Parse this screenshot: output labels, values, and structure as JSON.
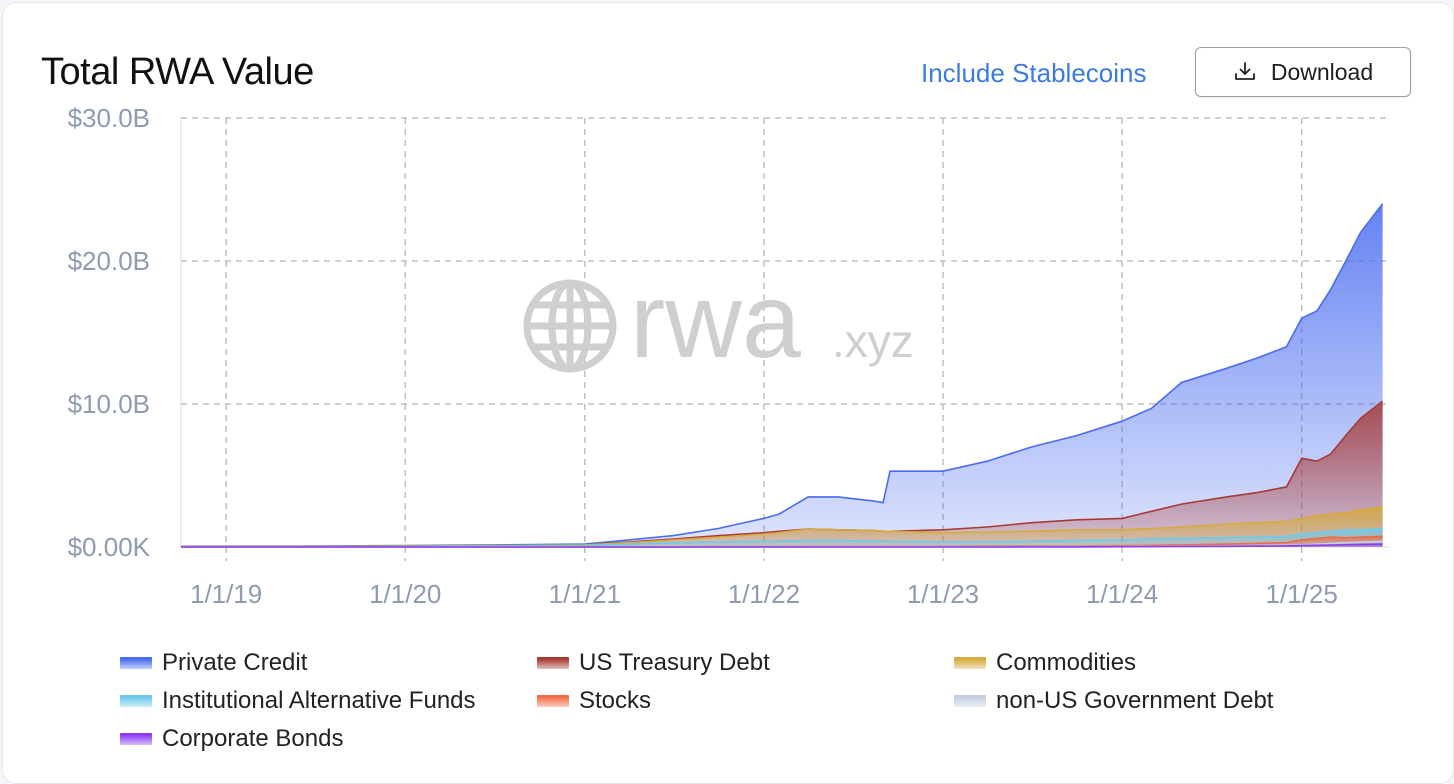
{
  "header": {
    "title": "Total RWA Value",
    "toggle_label": "Include Stablecoins",
    "download_label": "Download"
  },
  "watermark": {
    "brand": "rwa",
    "suffix": ".xyz"
  },
  "chart_data": {
    "type": "area",
    "stacked": true,
    "title": "Total RWA Value",
    "xlabel": "",
    "ylabel": "",
    "x_axis": {
      "type": "date",
      "range": [
        "2018-10-01",
        "2025-06-30"
      ],
      "ticks": [
        "2019-01-01",
        "2020-01-01",
        "2021-01-01",
        "2022-01-01",
        "2023-01-01",
        "2024-01-01",
        "2025-01-01"
      ],
      "tick_labels": [
        "1/1/19",
        "1/1/20",
        "1/1/21",
        "1/1/22",
        "1/1/23",
        "1/1/24",
        "1/1/25"
      ]
    },
    "y_axis": {
      "range": [
        0,
        30
      ],
      "unit": "billion USD",
      "ticks": [
        0,
        10,
        20,
        30
      ],
      "tick_labels": [
        "$0.00K",
        "$10.0B",
        "$20.0B",
        "$30.0B"
      ]
    },
    "grid": true,
    "legend_position": "bottom",
    "x_dates": [
      "2018-10-01",
      "2019-06-01",
      "2020-01-01",
      "2020-07-01",
      "2021-01-01",
      "2021-04-01",
      "2021-07-01",
      "2021-10-01",
      "2022-01-01",
      "2022-02-01",
      "2022-04-01",
      "2022-06-01",
      "2022-08-15",
      "2022-09-01",
      "2022-09-15",
      "2023-01-01",
      "2023-04-01",
      "2023-07-01",
      "2023-10-01",
      "2024-01-01",
      "2024-03-01",
      "2024-05-01",
      "2024-08-01",
      "2024-10-01",
      "2024-12-01",
      "2025-01-01",
      "2025-02-01",
      "2025-03-01",
      "2025-04-01",
      "2025-05-01",
      "2025-06-15"
    ],
    "cumulative_totals": [
      {
        "name": "Private Credit",
        "values": [
          0.05,
          0.07,
          0.1,
          0.15,
          0.2,
          0.5,
          0.8,
          1.3,
          2.0,
          2.3,
          3.5,
          3.5,
          3.2,
          3.1,
          5.3,
          5.3,
          6.0,
          7.0,
          7.8,
          8.8,
          9.7,
          11.5,
          12.5,
          13.2,
          14.0,
          16.0,
          16.5,
          18.0,
          20.0,
          22.0,
          24.0
        ]
      },
      {
        "name": "US Treasury Debt",
        "values": [
          0.02,
          0.04,
          0.06,
          0.1,
          0.15,
          0.35,
          0.55,
          0.8,
          1.0,
          1.1,
          1.25,
          1.2,
          1.15,
          1.1,
          1.1,
          1.2,
          1.4,
          1.7,
          1.9,
          2.0,
          2.5,
          3.0,
          3.5,
          3.8,
          4.2,
          6.2,
          6.0,
          6.5,
          7.8,
          9.0,
          10.2
        ]
      },
      {
        "name": "Commodities",
        "values": [
          0.02,
          0.04,
          0.06,
          0.1,
          0.15,
          0.3,
          0.5,
          0.7,
          0.9,
          1.0,
          1.25,
          1.2,
          1.15,
          1.1,
          1.1,
          1.0,
          1.05,
          1.1,
          1.2,
          1.2,
          1.3,
          1.4,
          1.6,
          1.7,
          1.8,
          2.0,
          2.2,
          2.3,
          2.4,
          2.6,
          2.8
        ]
      },
      {
        "name": "Institutional Alternative Funds",
        "values": [
          0.01,
          0.02,
          0.03,
          0.06,
          0.1,
          0.2,
          0.3,
          0.35,
          0.4,
          0.4,
          0.45,
          0.45,
          0.42,
          0.4,
          0.4,
          0.35,
          0.35,
          0.4,
          0.45,
          0.5,
          0.55,
          0.6,
          0.65,
          0.7,
          0.75,
          0.9,
          1.0,
          1.1,
          1.2,
          1.2,
          1.3
        ]
      },
      {
        "name": "Stocks",
        "values": [
          0.0,
          0.0,
          0.0,
          0.0,
          0.0,
          0.01,
          0.01,
          0.02,
          0.02,
          0.02,
          0.03,
          0.03,
          0.03,
          0.03,
          0.03,
          0.03,
          0.05,
          0.06,
          0.08,
          0.1,
          0.12,
          0.15,
          0.2,
          0.25,
          0.3,
          0.5,
          0.6,
          0.7,
          0.65,
          0.7,
          0.75
        ]
      },
      {
        "name": "non-US Government Debt",
        "values": [
          0.0,
          0.0,
          0.0,
          0.0,
          0.0,
          0.0,
          0.0,
          0.0,
          0.0,
          0.0,
          0.0,
          0.0,
          0.0,
          0.0,
          0.0,
          0.01,
          0.01,
          0.02,
          0.03,
          0.04,
          0.05,
          0.06,
          0.08,
          0.1,
          0.12,
          0.15,
          0.2,
          0.25,
          0.3,
          0.35,
          0.4
        ]
      },
      {
        "name": "Corporate Bonds",
        "values": [
          0.0,
          0.0,
          0.0,
          0.0,
          0.0,
          0.0,
          0.0,
          0.0,
          0.0,
          0.0,
          0.0,
          0.0,
          0.0,
          0.0,
          0.0,
          0.0,
          0.0,
          0.01,
          0.01,
          0.02,
          0.03,
          0.04,
          0.05,
          0.06,
          0.08,
          0.1,
          0.12,
          0.14,
          0.16,
          0.18,
          0.2
        ]
      }
    ],
    "legend": [
      {
        "name": "Private Credit",
        "color": "#4a6cf0"
      },
      {
        "name": "US Treasury Debt",
        "color": "#a83a36"
      },
      {
        "name": "Commodities",
        "color": "#d6aa3c"
      },
      {
        "name": "Institutional Alternative Funds",
        "color": "#6cc9ec"
      },
      {
        "name": "Stocks",
        "color": "#f06a45"
      },
      {
        "name": "non-US Government Debt",
        "color": "#c4cee2"
      },
      {
        "name": "Corporate Bonds",
        "color": "#8a3cf0"
      }
    ]
  },
  "colors": {
    "axis_text": "#8e9bb0",
    "grid": "#b5b5b5",
    "accent": "#3b7be0",
    "watermark": "#cfcfcf"
  }
}
